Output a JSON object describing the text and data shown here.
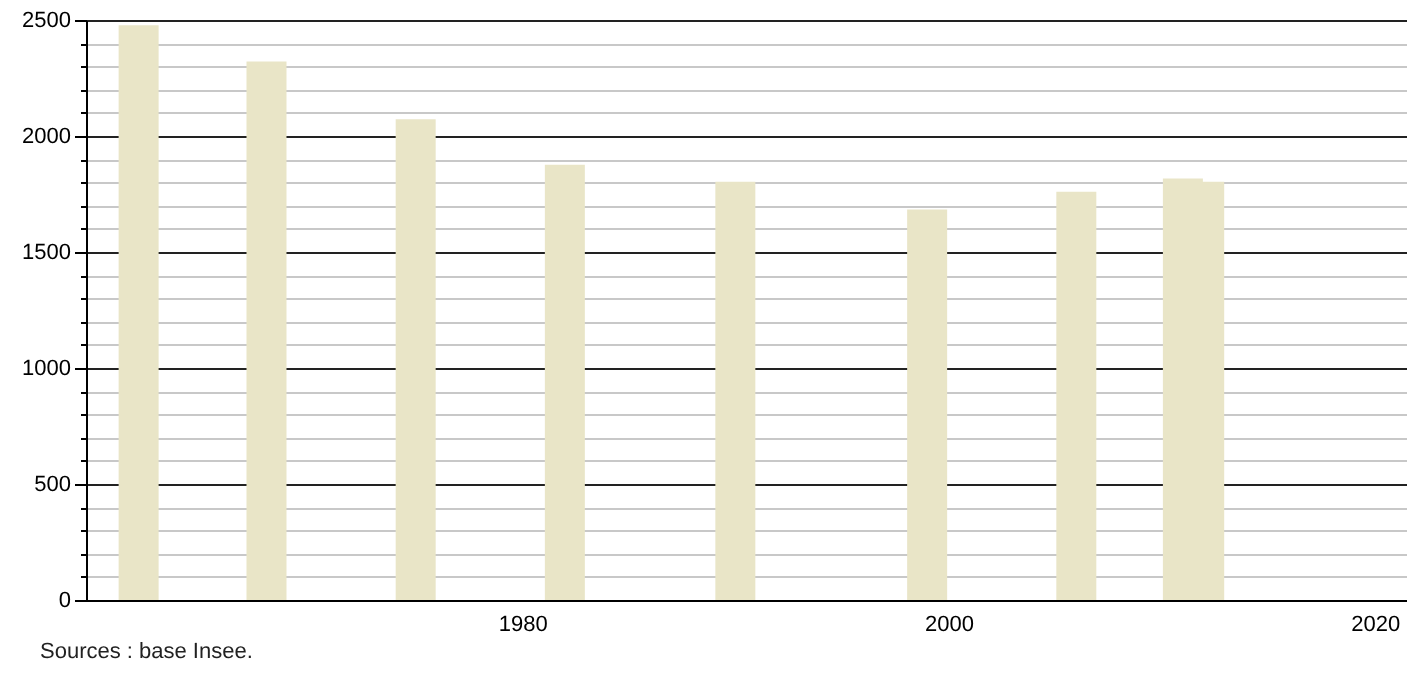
{
  "chart_data": {
    "type": "bar",
    "x": [
      1962,
      1968,
      1975,
      1982,
      1990,
      1999,
      2006,
      2011,
      2012
    ],
    "values": [
      2477,
      2321,
      2072,
      1876,
      1803,
      1683,
      1760,
      1817,
      1803
    ],
    "color": "#e9e5c7",
    "xlim": [
      1960,
      2021
    ],
    "xticks": [
      1980,
      2000,
      2020
    ],
    "ylim": [
      0,
      2500
    ],
    "yticks": [
      0,
      {
        "value": 100,
        "label": null
      },
      {
        "value": 200,
        "label": null
      },
      {
        "value": 300,
        "label": null
      },
      {
        "value": 400,
        "label": null
      },
      500,
      {
        "value": 600,
        "label": null
      },
      {
        "value": 700,
        "label": null
      },
      {
        "value": 800,
        "label": null
      },
      {
        "value": 900,
        "label": null
      },
      1000,
      {
        "value": 1100,
        "label": null
      },
      {
        "value": 1200,
        "label": null
      },
      {
        "value": 1300,
        "label": null
      },
      {
        "value": 1400,
        "label": null
      },
      1500,
      {
        "value": 1600,
        "label": null
      },
      {
        "value": 1700,
        "label": null
      },
      {
        "value": 1800,
        "label": null
      },
      {
        "value": 1900,
        "label": null
      },
      2000,
      {
        "value": 2100,
        "label": null
      },
      {
        "value": 2200,
        "label": null
      },
      {
        "value": 2300,
        "label": null
      },
      {
        "value": 2400,
        "label": null
      },
      2500
    ],
    "grid": "y",
    "annotations": [
      "Sources : base Insee."
    ]
  }
}
